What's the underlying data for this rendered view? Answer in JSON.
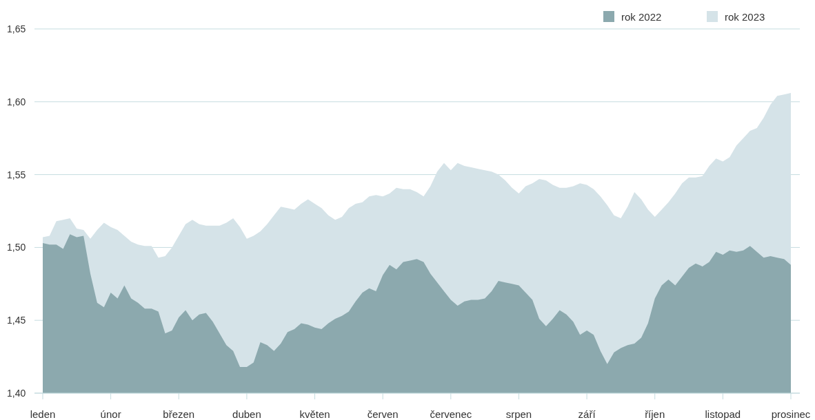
{
  "chart_data": {
    "type": "area",
    "legend": "top right",
    "grid": "y",
    "categories": [
      "leden",
      null,
      null,
      null,
      null,
      null,
      null,
      null,
      null,
      null,
      "únor",
      null,
      null,
      null,
      null,
      null,
      null,
      null,
      null,
      null,
      "březen",
      null,
      null,
      null,
      null,
      null,
      null,
      null,
      null,
      null,
      "duben",
      null,
      null,
      null,
      null,
      null,
      null,
      null,
      null,
      null,
      "květen",
      null,
      null,
      null,
      null,
      null,
      null,
      null,
      null,
      null,
      "červen",
      null,
      null,
      null,
      null,
      null,
      null,
      null,
      null,
      null,
      "červenec",
      null,
      null,
      null,
      null,
      null,
      null,
      null,
      null,
      null,
      "srpen",
      null,
      null,
      null,
      null,
      null,
      null,
      null,
      null,
      null,
      "září",
      null,
      null,
      null,
      null,
      null,
      null,
      null,
      null,
      null,
      "říjen",
      null,
      null,
      null,
      null,
      null,
      null,
      null,
      null,
      null,
      "listopad",
      null,
      null,
      null,
      null,
      null,
      null,
      null,
      null,
      null,
      "prosinec"
    ],
    "ylim": [
      1.4,
      1.65
    ],
    "yticks": [
      {
        "value": 1.4,
        "label": "1,40"
      },
      {
        "value": 1.45,
        "label": "1,45"
      },
      {
        "value": 1.5,
        "label": "1,50"
      },
      {
        "value": 1.55,
        "label": "1,55"
      },
      {
        "value": 1.6,
        "label": "1,60"
      },
      {
        "value": 1.65,
        "label": "1,65"
      }
    ],
    "series": [
      {
        "name": "rok 2022",
        "color": "#8ca9ae",
        "values": [
          1.503,
          1.502,
          1.502,
          1.499,
          1.509,
          1.507,
          1.508,
          1.482,
          1.462,
          1.459,
          1.469,
          1.465,
          1.474,
          1.465,
          1.462,
          1.458,
          1.458,
          1.456,
          1.441,
          1.443,
          1.452,
          1.457,
          1.45,
          1.454,
          1.455,
          1.449,
          1.441,
          1.433,
          1.429,
          1.418,
          1.418,
          1.421,
          1.435,
          1.433,
          1.429,
          1.434,
          1.442,
          1.444,
          1.448,
          1.447,
          1.445,
          1.444,
          1.448,
          1.451,
          1.453,
          1.456,
          1.463,
          1.469,
          1.472,
          1.47,
          1.481,
          1.488,
          1.485,
          1.49,
          1.491,
          1.492,
          1.49,
          1.482,
          1.476,
          1.47,
          1.464,
          1.46,
          1.463,
          1.464,
          1.464,
          1.465,
          1.47,
          1.477,
          1.476,
          1.475,
          1.474,
          1.469,
          1.464,
          1.451,
          1.446,
          1.451,
          1.457,
          1.454,
          1.449,
          1.44,
          1.443,
          1.44,
          1.429,
          1.42,
          1.428,
          1.431,
          1.433,
          1.434,
          1.438,
          1.448,
          1.465,
          1.474,
          1.478,
          1.474,
          1.48,
          1.486,
          1.489,
          1.487,
          1.49,
          1.497,
          1.495,
          1.498,
          1.497,
          1.498,
          1.501,
          1.497,
          1.493,
          1.494,
          1.493,
          1.492,
          1.488
        ]
      },
      {
        "name": "rok 2023",
        "color": "#d5e3e8",
        "values": [
          1.507,
          1.508,
          1.518,
          1.519,
          1.52,
          1.513,
          1.512,
          1.506,
          1.512,
          1.517,
          1.514,
          1.512,
          1.508,
          1.504,
          1.502,
          1.501,
          1.501,
          1.493,
          1.494,
          1.5,
          1.508,
          1.516,
          1.519,
          1.516,
          1.515,
          1.515,
          1.515,
          1.517,
          1.52,
          1.514,
          1.506,
          1.508,
          1.511,
          1.516,
          1.522,
          1.528,
          1.527,
          1.526,
          1.53,
          1.533,
          1.53,
          1.527,
          1.522,
          1.519,
          1.521,
          1.527,
          1.53,
          1.531,
          1.535,
          1.536,
          1.535,
          1.537,
          1.541,
          1.54,
          1.54,
          1.538,
          1.535,
          1.542,
          1.552,
          1.558,
          1.553,
          1.558,
          1.556,
          1.555,
          1.554,
          1.553,
          1.552,
          1.55,
          1.546,
          1.541,
          1.537,
          1.542,
          1.544,
          1.547,
          1.546,
          1.543,
          1.541,
          1.541,
          1.542,
          1.544,
          1.543,
          1.54,
          1.535,
          1.529,
          1.522,
          1.52,
          1.528,
          1.538,
          1.533,
          1.526,
          1.521,
          1.526,
          1.531,
          1.537,
          1.544,
          1.548,
          1.548,
          1.549,
          1.556,
          1.561,
          1.559,
          1.562,
          1.57,
          1.575,
          1.58,
          1.582,
          1.589,
          1.598,
          1.604,
          1.605,
          1.606
        ]
      }
    ]
  }
}
